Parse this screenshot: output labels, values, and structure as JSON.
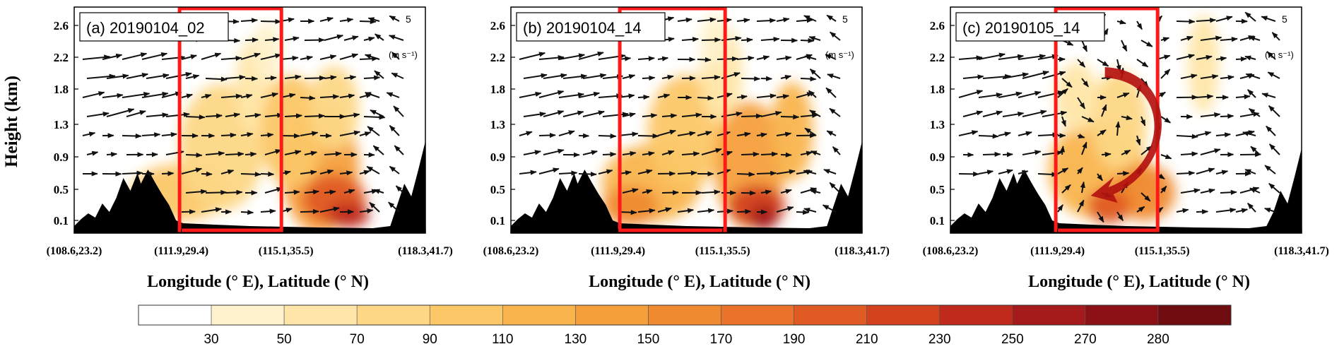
{
  "chart_data": {
    "type": "heatmap",
    "ylabel": "Height (km)",
    "xlabel": "Longitude (° E), Latitude (° N)",
    "y_ticks": [
      "0.1",
      "0.5",
      "0.9",
      "1.3",
      "1.8",
      "2.2",
      "2.6"
    ],
    "x_ticks": [
      "(108.6,23.2)",
      "(111.9,29.4)",
      "(115.1,35.5)",
      "(118.3,41.7)"
    ],
    "wind_reference": {
      "value": "5",
      "unit": "(m s⁻¹)"
    },
    "panels": [
      {
        "title": "(a) 20190104_02"
      },
      {
        "title": "(b) 20190104_14"
      },
      {
        "title": "(c) 20190105_14",
        "circulation_arrow": true
      }
    ],
    "colorbar": {
      "labels": [
        "30",
        "50",
        "70",
        "90",
        "110",
        "130",
        "150",
        "170",
        "190",
        "210",
        "230",
        "250",
        "270",
        "280"
      ],
      "colors": [
        "#ffffff",
        "#fff2cc",
        "#ffe6a8",
        "#fdd785",
        "#fcc767",
        "#f9b44d",
        "#f59f3c",
        "#f08a30",
        "#ea7229",
        "#e05a24",
        "#d3411f",
        "#c02a1c",
        "#a51a1a",
        "#8b1116",
        "#6f0c10"
      ]
    },
    "highlight_box_color": "#ff1a1a"
  }
}
